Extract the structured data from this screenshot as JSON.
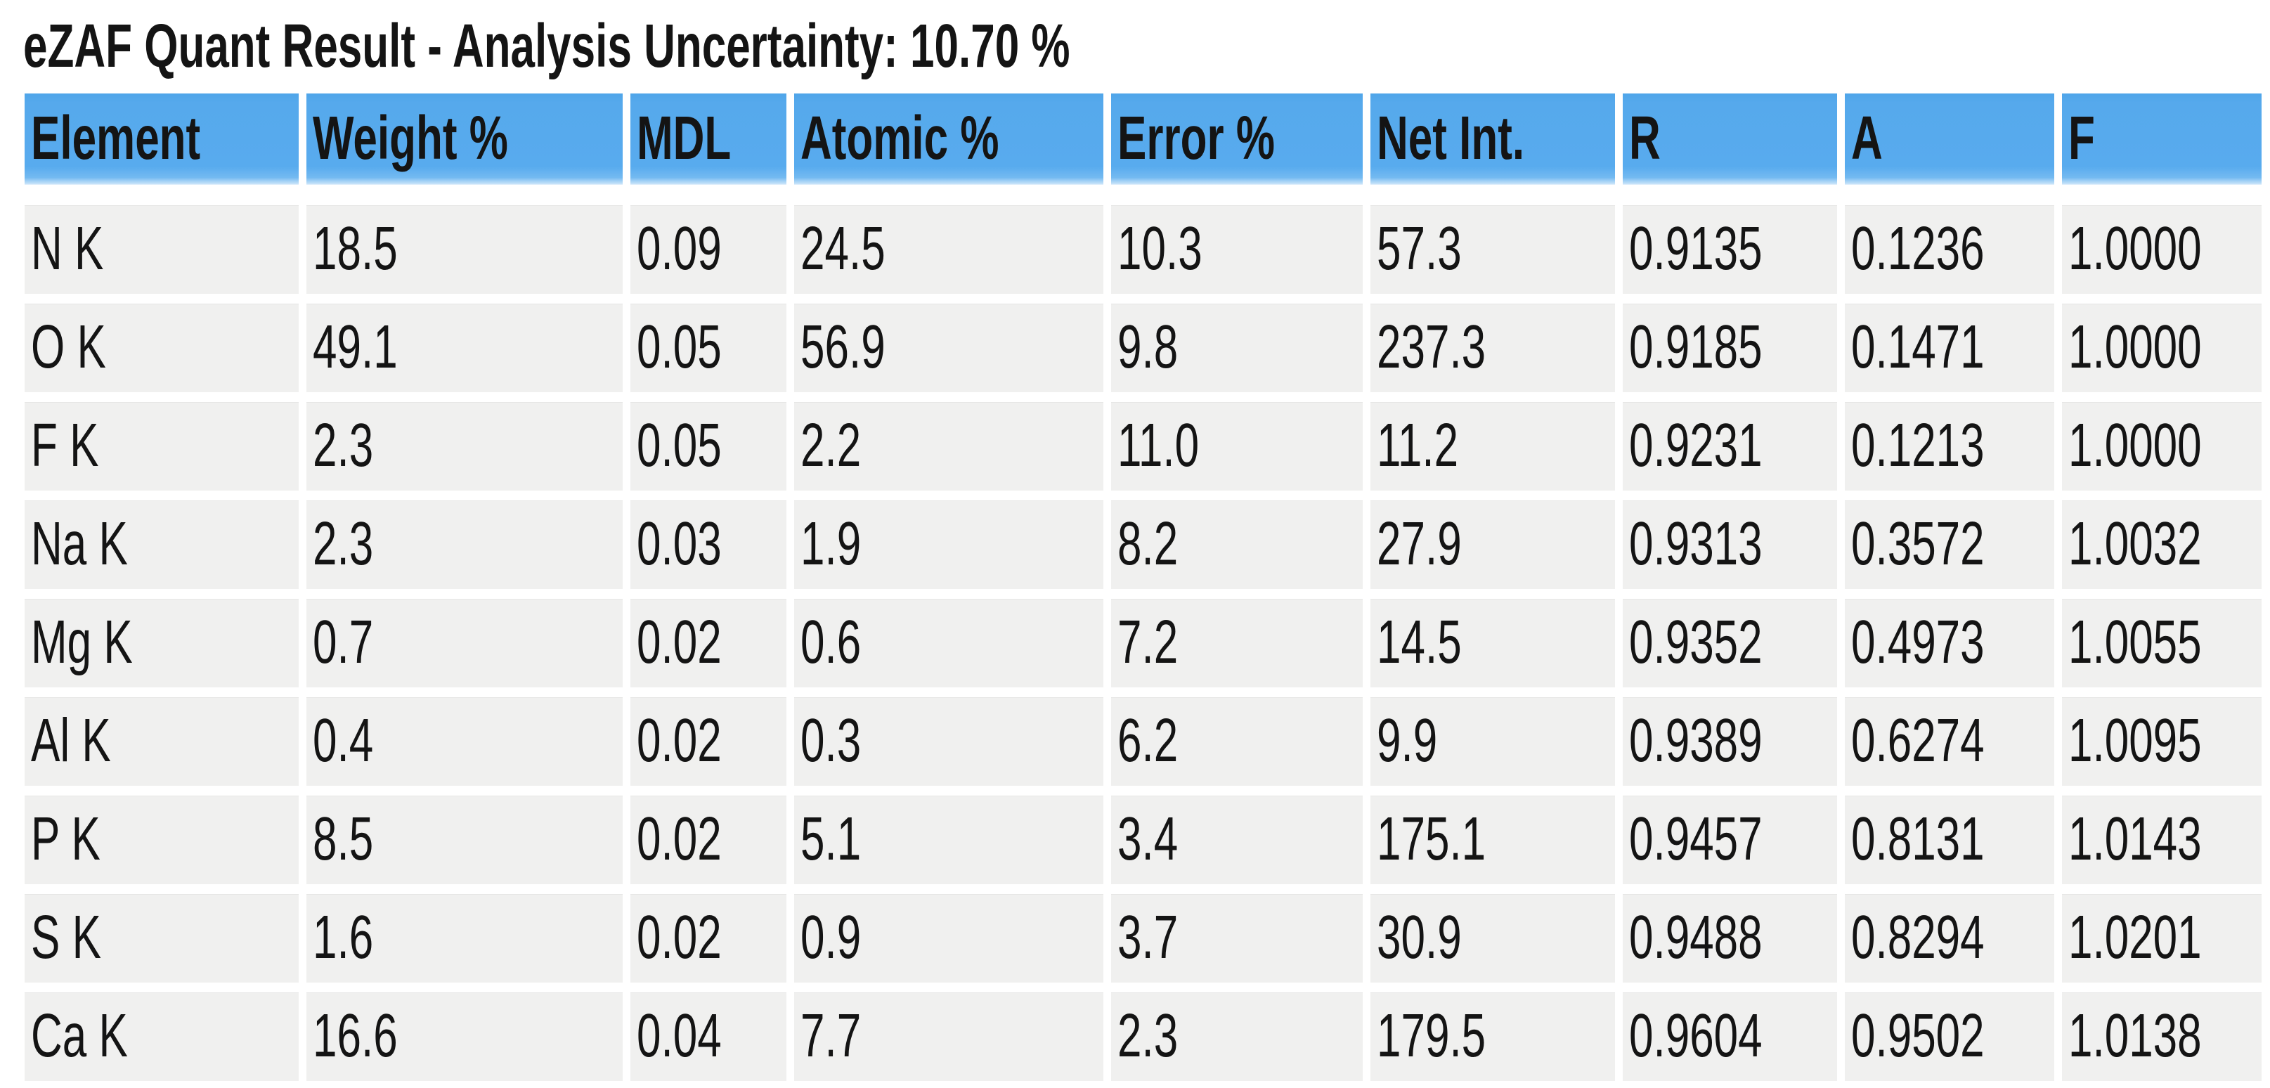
{
  "title": "eZAF Quant Result - Analysis Uncertainty: 10.70 %",
  "colors": {
    "header_blue": "#58abee",
    "row_gray": "#f0f0ef",
    "text": "#141414",
    "background": "#ffffff"
  },
  "table": {
    "columns": [
      "Element",
      "Weight %",
      "MDL",
      "Atomic %",
      "Error %",
      "Net Int.",
      "R",
      "A",
      "F"
    ],
    "rows": [
      [
        "N K",
        "18.5",
        "0.09",
        "24.5",
        "10.3",
        "57.3",
        "0.9135",
        "0.1236",
        "1.0000"
      ],
      [
        "O K",
        "49.1",
        "0.05",
        "56.9",
        "9.8",
        "237.3",
        "0.9185",
        "0.1471",
        "1.0000"
      ],
      [
        "F K",
        "2.3",
        "0.05",
        "2.2",
        "11.0",
        "11.2",
        "0.9231",
        "0.1213",
        "1.0000"
      ],
      [
        "Na K",
        "2.3",
        "0.03",
        "1.9",
        "8.2",
        "27.9",
        "0.9313",
        "0.3572",
        "1.0032"
      ],
      [
        "Mg K",
        "0.7",
        "0.02",
        "0.6",
        "7.2",
        "14.5",
        "0.9352",
        "0.4973",
        "1.0055"
      ],
      [
        "Al K",
        "0.4",
        "0.02",
        "0.3",
        "6.2",
        "9.9",
        "0.9389",
        "0.6274",
        "1.0095"
      ],
      [
        "P K",
        "8.5",
        "0.02",
        "5.1",
        "3.4",
        "175.1",
        "0.9457",
        "0.8131",
        "1.0143"
      ],
      [
        "S K",
        "1.6",
        "0.02",
        "0.9",
        "3.7",
        "30.9",
        "0.9488",
        "0.8294",
        "1.0201"
      ],
      [
        "Ca K",
        "16.6",
        "0.04",
        "7.7",
        "2.3",
        "179.5",
        "0.9604",
        "0.9502",
        "1.0138"
      ]
    ]
  }
}
